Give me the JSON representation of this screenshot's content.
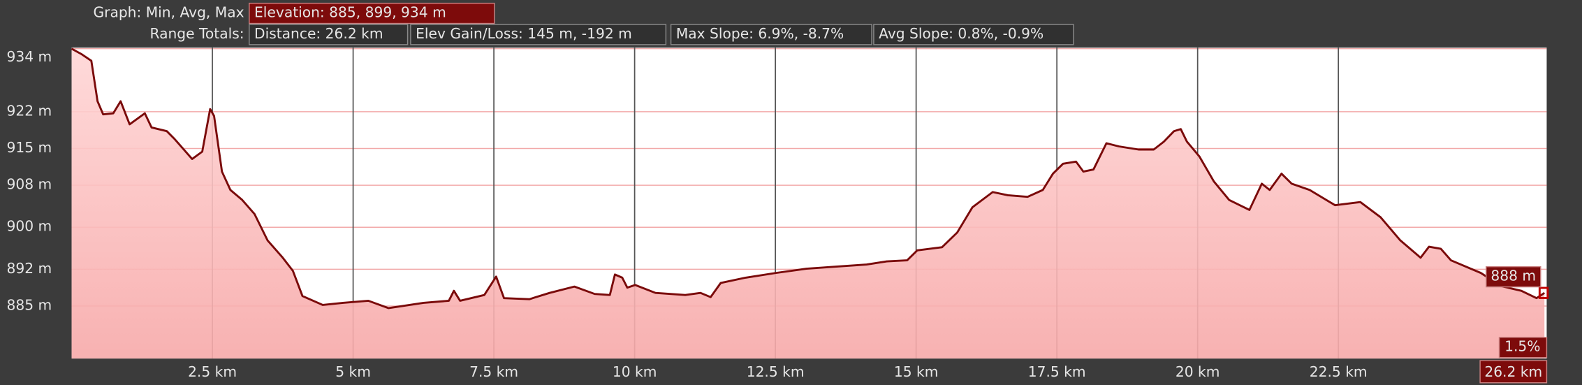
{
  "header": {
    "graph_label": "Graph: Min, Avg, Max",
    "elevation": "Elevation: 885, 899, 934 m",
    "range_label": "Range Totals:",
    "distance": "Distance: 26.2 km",
    "gain_loss": "Elev Gain/Loss: 145 m, -192 m",
    "max_slope": "Max Slope: 6.9%, -8.7%",
    "avg_slope": "Avg Slope: 0.8%, -0.9%"
  },
  "cursor": {
    "elevation": "888 m",
    "slope": "1.5%",
    "distance": "26.2 km"
  },
  "chart_data": {
    "type": "area",
    "color": "#7a0a0a",
    "fill_top": "#ffd6d6",
    "fill_bottom": "#f7a9a9",
    "grid": true,
    "xlim": [
      0,
      26.2
    ],
    "ylim": [
      875,
      934.2
    ],
    "xticks": [
      {
        "value": 2.5,
        "label": "2.5 km"
      },
      {
        "value": 5,
        "label": "5 km"
      },
      {
        "value": 7.5,
        "label": "7.5 km"
      },
      {
        "value": 10,
        "label": "10 km"
      },
      {
        "value": 12.5,
        "label": "12.5 km"
      },
      {
        "value": 15,
        "label": "15 km"
      },
      {
        "value": 17.5,
        "label": "17.5 km"
      },
      {
        "value": 20,
        "label": "20 km"
      },
      {
        "value": 22.5,
        "label": "22.5 km"
      }
    ],
    "yticks": [
      {
        "value": 885,
        "label": "885 m"
      },
      {
        "value": 892,
        "label": "892 m"
      },
      {
        "value": 900,
        "label": "900 m"
      },
      {
        "value": 908,
        "label": "908 m"
      },
      {
        "value": 915,
        "label": "915 m"
      },
      {
        "value": 922,
        "label": "922 m"
      },
      {
        "value": 934,
        "label": "934 m"
      }
    ],
    "x": [
      0,
      0.17,
      0.35,
      0.46,
      0.56,
      0.74,
      0.87,
      1.03,
      1.3,
      1.42,
      1.69,
      1.82,
      2.14,
      2.32,
      2.46,
      2.53,
      2.67,
      2.82,
      3.03,
      3.25,
      3.48,
      3.75,
      3.93,
      4.1,
      4.46,
      4.82,
      5.27,
      5.63,
      6.25,
      6.7,
      6.79,
      6.9,
      7.33,
      7.54,
      7.68,
      8.13,
      8.49,
      8.93,
      9.29,
      9.56,
      9.65,
      9.78,
      9.87,
      10.01,
      10.37,
      10.9,
      11.17,
      11.35,
      11.53,
      11.97,
      12.51,
      13.05,
      13.58,
      14.12,
      14.48,
      14.84,
      15.02,
      15.46,
      15.73,
      16.0,
      16.36,
      16.63,
      16.98,
      17.25,
      17.43,
      17.61,
      17.84,
      17.97,
      18.15,
      18.38,
      18.6,
      18.95,
      19.22,
      19.4,
      19.58,
      19.7,
      19.81,
      20.03,
      20.29,
      20.56,
      20.92,
      21.14,
      21.28,
      21.49,
      21.67,
      21.99,
      22.44,
      22.89,
      23.25,
      23.6,
      23.96,
      24.11,
      24.32,
      24.5,
      25.03,
      25.39,
      25.75,
      26.02,
      26.16
    ],
    "values": [
      934,
      933,
      931.7,
      924,
      921.5,
      921.7,
      924,
      919.6,
      921.7,
      919,
      918.3,
      916.9,
      913,
      914.4,
      922.5,
      921.2,
      910.6,
      907.1,
      905.2,
      902.5,
      897.5,
      894.2,
      891.7,
      886.9,
      885.2,
      885.6,
      886,
      884.6,
      885.6,
      886,
      887.9,
      886,
      887.1,
      890.6,
      886.5,
      886.3,
      887.5,
      888.7,
      887.3,
      887.1,
      891,
      890.4,
      888.5,
      889,
      887.5,
      887.1,
      887.5,
      886.7,
      889.4,
      890.4,
      891.3,
      892.1,
      892.5,
      892.9,
      893.5,
      893.7,
      895.6,
      896.2,
      899,
      903.8,
      906.7,
      906.1,
      905.8,
      907.1,
      910.2,
      912.1,
      912.5,
      910.6,
      911,
      916,
      915.4,
      914.8,
      914.8,
      916.3,
      918.3,
      918.7,
      916.3,
      913.5,
      908.7,
      905.2,
      903.3,
      908.3,
      907.1,
      910.2,
      908.3,
      907.1,
      904.2,
      904.8,
      901.9,
      897.5,
      894.2,
      896.3,
      895.9,
      893.7,
      891.3,
      888.8,
      887.9,
      886.5,
      887.5
    ]
  }
}
